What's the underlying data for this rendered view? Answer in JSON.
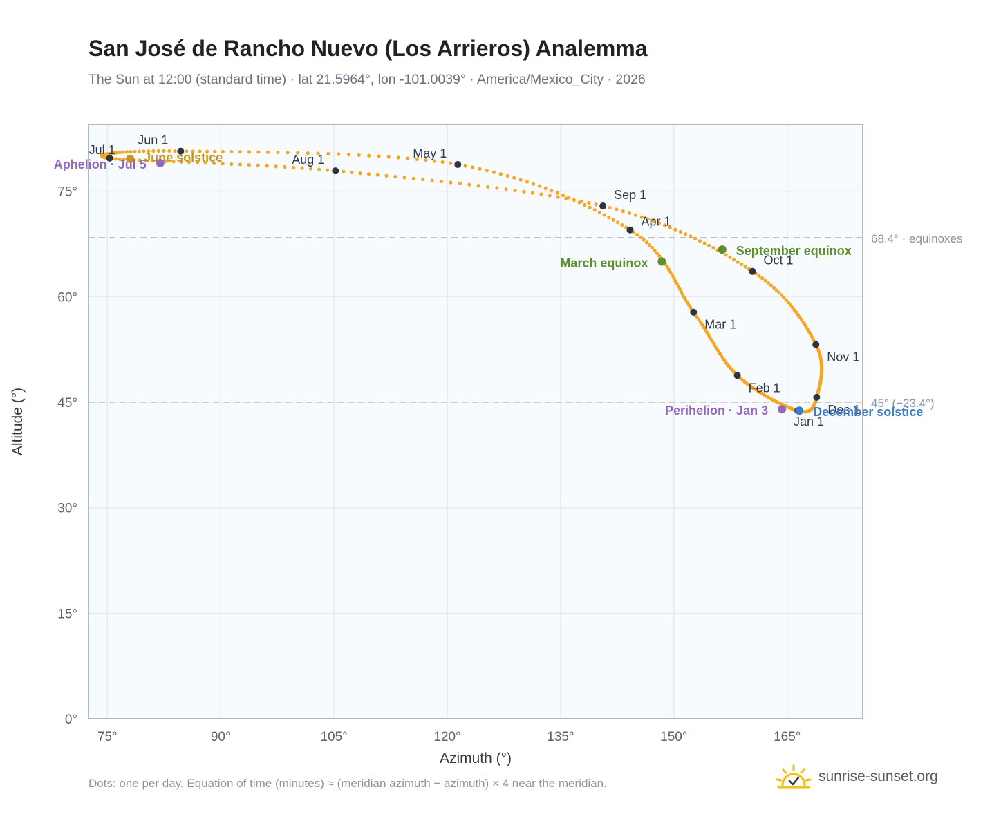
{
  "header": {
    "title": "San José de Rancho Nuevo (Los Arrieros) Analemma",
    "subtitle": "The Sun at 12:00 (standard time) · lat 21.5964°, lon -101.0039° · America/Mexico_City · 2026"
  },
  "footer": {
    "note": "Dots: one per day. Equation of time (minutes) ≈ (meridian azimuth − azimuth) × 4 near the meridian.",
    "brand": "sunrise-sunset.org"
  },
  "colors": {
    "curve": "#f5a623",
    "month_dot": "#2d3440",
    "equinox": "#5a8f2e",
    "solstice_june": "#c8961a",
    "solstice_december": "#3d7cc9",
    "apsis": "#9467bd",
    "reference_line": "#b8c2cc",
    "plot_bg": "#f8fbfe",
    "grid": "#e6ebf0",
    "axis_text": "#5b6270",
    "brand_icon": "#f2c21b"
  },
  "chart_data": {
    "type": "scatter",
    "xlabel": "Azimuth (°)",
    "ylabel": "Altitude (°)",
    "xlim": [
      72.5,
      175
    ],
    "ylim": [
      0,
      84.5
    ],
    "x_ticks": [
      75,
      90,
      105,
      120,
      135,
      150,
      165
    ],
    "y_ticks": [
      0,
      15,
      30,
      45,
      60,
      75
    ],
    "x_tick_labels": [
      "75°",
      "90°",
      "105°",
      "120°",
      "135°",
      "150°",
      "165°"
    ],
    "y_tick_labels": [
      "0°",
      "15°",
      "30°",
      "45°",
      "60°",
      "75°"
    ],
    "grid": true,
    "reference_lines": [
      {
        "y": 68.4,
        "label": "68.4° · equinoxes"
      },
      {
        "y": 45.0,
        "label": "45° (−23.4°)"
      }
    ],
    "series": [
      {
        "values": [
          {
            "label": "Jan 1",
            "x": 166.4,
            "y": 43.8
          },
          {
            "label": "Feb 1",
            "x": 158.4,
            "y": 48.8
          },
          {
            "label": "Mar 1",
            "x": 152.6,
            "y": 57.8
          },
          {
            "label": "Apr 1",
            "x": 144.2,
            "y": 69.5
          },
          {
            "label": "May 1",
            "x": 121.4,
            "y": 78.8
          },
          {
            "label": "Jun 1",
            "x": 84.7,
            "y": 80.7
          },
          {
            "label": "Jul 1",
            "x": 75.3,
            "y": 79.7
          },
          {
            "label": "Aug 1",
            "x": 105.2,
            "y": 77.9
          },
          {
            "label": "Sep 1",
            "x": 140.6,
            "y": 72.9
          },
          {
            "label": "Oct 1",
            "x": 160.4,
            "y": 63.6
          },
          {
            "label": "Nov 1",
            "x": 168.8,
            "y": 53.2
          },
          {
            "label": "Dec 1",
            "x": 168.9,
            "y": 45.7
          }
        ]
      }
    ],
    "annotations": [
      {
        "label": "March equinox",
        "x": 148.4,
        "y": 65.0,
        "kind": "equinox"
      },
      {
        "label": "September equinox",
        "x": 156.4,
        "y": 66.7,
        "kind": "equinox"
      },
      {
        "label": "June solstice",
        "x": 78.0,
        "y": 79.6,
        "kind": "solstice_june"
      },
      {
        "label": "December solstice",
        "x": 166.6,
        "y": 43.8,
        "kind": "solstice_december"
      },
      {
        "label": "Perihelion · Jan 3",
        "x": 164.3,
        "y": 44.0,
        "kind": "apsis"
      },
      {
        "label": "Aphelion · Jul 5",
        "x": 82.0,
        "y": 79.0,
        "kind": "apsis"
      }
    ]
  }
}
